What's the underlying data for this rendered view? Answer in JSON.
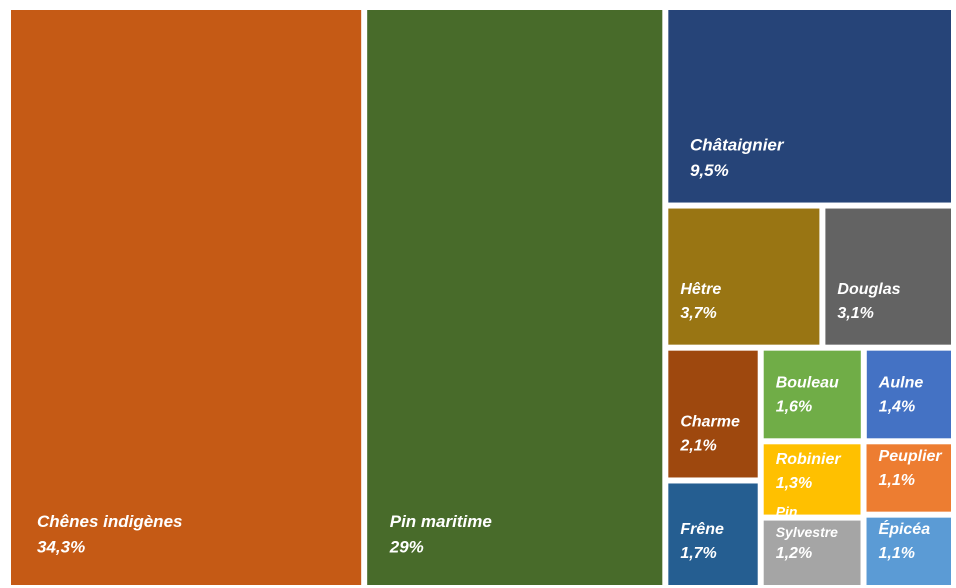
{
  "chart_data": {
    "type": "treemap",
    "categories": [
      "Chênes indigènes",
      "Pin maritime",
      "Châtaignier",
      "Hêtre",
      "Douglas",
      "Charme",
      "Frêne",
      "Bouleau",
      "Aulne",
      "Robinier",
      "Pin Sylvestre",
      "Peuplier",
      "Épicéa"
    ],
    "values": [
      34.3,
      29,
      9.5,
      3.7,
      3.1,
      2.1,
      1.7,
      1.6,
      1.4,
      1.3,
      1.2,
      1.1,
      1.1
    ],
    "value_labels": [
      "34,3%",
      "29%",
      "9,5%",
      "3,7%",
      "3,1%",
      "2,1%",
      "1,7%",
      "1,6%",
      "1,4%",
      "1,3%",
      "1,2%",
      "1,1%",
      "1,1%"
    ],
    "colors": [
      "#c55a15",
      "#486b2a",
      "#264478",
      "#997513",
      "#636363",
      "#9e480e",
      "#255e91",
      "#70ad47",
      "#4472c4",
      "#ffc000",
      "#a5a5a5",
      "#ed7d31",
      "#5b9bd5"
    ]
  }
}
